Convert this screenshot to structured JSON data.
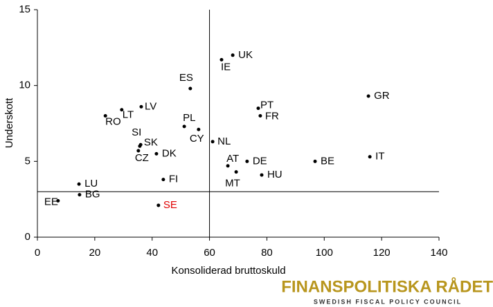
{
  "chart_data": {
    "type": "scatter",
    "x_label": "Konsoliderad bruttoskuld",
    "y_label": "Underskott",
    "labels": [
      "UK",
      "IE",
      "ES",
      "GR",
      "PT",
      "FR",
      "LV",
      "LT",
      "RO",
      "PL",
      "CY",
      "NL",
      "SI",
      "SK",
      "CZ",
      "DK",
      "IT",
      "AT",
      "DE",
      "BE",
      "MT",
      "HU",
      "FI",
      "LU",
      "BG",
      "EE",
      "SE"
    ],
    "x": [
      68.1,
      64.2,
      53.3,
      115.4,
      77.0,
      77.7,
      36.2,
      29.4,
      23.7,
      51.2,
      56.2,
      61.1,
      36.0,
      35.7,
      35.2,
      41.5,
      115.9,
      66.4,
      73.1,
      96.8,
      69.3,
      78.2,
      43.9,
      14.5,
      14.7,
      7.2,
      42.2
    ],
    "values": [
      12.0,
      11.7,
      9.8,
      9.3,
      8.5,
      8.0,
      8.6,
      8.4,
      8.0,
      7.3,
      7.1,
      6.3,
      6.1,
      6.0,
      5.7,
      5.5,
      5.3,
      4.7,
      5.0,
      5.0,
      4.3,
      4.1,
      3.8,
      3.5,
      2.8,
      2.4,
      2.1
    ],
    "colors": [
      "#000",
      "#000",
      "#000",
      "#000",
      "#000",
      "#000",
      "#000",
      "#000",
      "#000",
      "#000",
      "#000",
      "#000",
      "#000",
      "#000",
      "#000",
      "#000",
      "#000",
      "#000",
      "#000",
      "#000",
      "#000",
      "#000",
      "#000",
      "#000",
      "#000",
      "#000",
      "#e00000"
    ],
    "xlim": [
      0,
      140
    ],
    "xticks": [
      0,
      20,
      40,
      60,
      80,
      100,
      120,
      140
    ],
    "ylim": [
      0,
      15
    ],
    "yticks": [
      0,
      5,
      10,
      15
    ],
    "vlines": [
      60
    ],
    "hlines": [
      3
    ],
    "grid": false
  },
  "logo": {
    "name": "FINANSPOLITISKA RÅDET",
    "tagline": "SWEDISH FISCAL POLICY COUNCIL"
  }
}
